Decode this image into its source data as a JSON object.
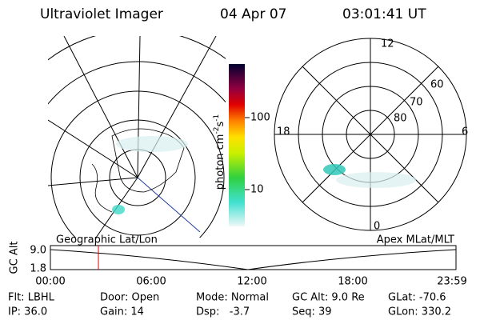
{
  "header": {
    "instrument": "Ultraviolet Imager",
    "date": "04 Apr 07",
    "time": "03:01:41 UT"
  },
  "colorbar": {
    "unit_base": "photon cm",
    "unit_exp1": "-2",
    "unit_mid": "s",
    "unit_exp2": "-1",
    "ticks": [
      "100",
      "10"
    ]
  },
  "polar": {
    "mlt": [
      "12",
      "6",
      "18",
      "0"
    ],
    "mlat": [
      "60",
      "70",
      "80"
    ]
  },
  "altitude_plot": {
    "left_title": "Geographic Lat/Lon",
    "right_title": "Apex MLat/MLT",
    "y_label": "GC Alt",
    "y_ticks": [
      "9.0",
      "1.8"
    ],
    "x_ticks": [
      "00:00",
      "06:00",
      "12:00",
      "18:00",
      "23:59"
    ]
  },
  "info": {
    "rows": [
      [
        "Flt: LBHL",
        "Door: Open",
        "Mode: Normal",
        "GC Alt: 9.0 Re",
        "GLat: -70.6"
      ],
      [
        "IP: 36.0",
        "Gain: 14",
        "Dsp:   -3.7",
        "Seq: 39",
        "GLon: 330.2"
      ]
    ]
  }
}
